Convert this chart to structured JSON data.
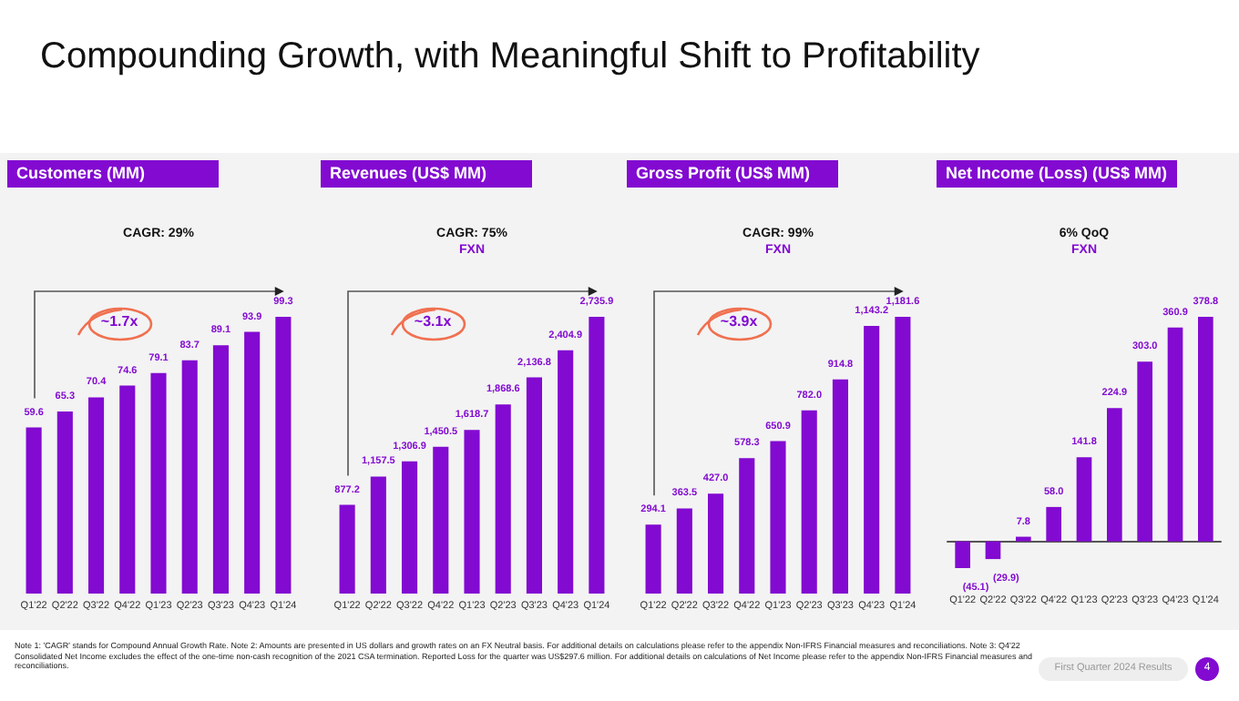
{
  "chart_data": [
    {
      "type": "other",
      "title": "Compounding Growth, with Meaningful Shift to Profitability",
      "annotations": [
        "Note 1: 'CAGR' stands for Compound Annual Growth Rate. Note 2: Amounts are presented in US dollars and growth rates on an FX Neutral basis. For additional details on calculations please refer to the appendix Non-IFRS Financial measures and reconciliations. Note 3: Q4'22 Consolidated Net Income excludes the effect of the one-time non-cash recognition of the 2021 CSA termination. Reported Loss for the quarter was US$297.6 million. For additional details on calculations of Net Income please refer to the appendix Non-IFRS Financial measures and reconciliations.",
        "First Quarter 2024 Results",
        "4"
      ]
    },
    {
      "type": "bar",
      "title": "Customers (MM)",
      "categories": [
        "Q1'22",
        "Q2'22",
        "Q3'22",
        "Q4'22",
        "Q1'23",
        "Q2'23",
        "Q3'23",
        "Q4'23",
        "Q1'24"
      ],
      "values": [
        59.6,
        65.3,
        70.4,
        74.6,
        79.1,
        83.7,
        89.1,
        93.9,
        99.3
      ],
      "color": "#820ad1",
      "data_labels": true,
      "annotations": [
        "CAGR: 29%",
        "~1.7x"
      ]
    },
    {
      "type": "bar",
      "title": "Revenues (US$ MM)",
      "categories": [
        "Q1'22",
        "Q2'22",
        "Q3'22",
        "Q4'22",
        "Q1'23",
        "Q2'23",
        "Q3'23",
        "Q4'23",
        "Q1'24"
      ],
      "values": [
        877.2,
        1157.5,
        1306.9,
        1450.5,
        1618.7,
        1868.6,
        2136.8,
        2404.9,
        2735.9
      ],
      "color": "#820ad1",
      "value_labels": [
        "877.2",
        "1,157.5",
        "1,306.9",
        "1,450.5",
        "1,618.7",
        "1,868.6",
        "2,136.8",
        "2,404.9",
        "2,735.9"
      ],
      "annotations": [
        "CAGR: 75%\nFXN",
        "~3.1x"
      ]
    },
    {
      "type": "bar",
      "title": "Gross Profit (US$ MM)",
      "categories": [
        "Q1'22",
        "Q2'22",
        "Q3'22",
        "Q4'22",
        "Q1'23",
        "Q2'23",
        "Q3'23",
        "Q4'23",
        "Q1'24"
      ],
      "values": [
        294.1,
        363.5,
        427.0,
        578.3,
        650.9,
        782.0,
        914.8,
        1143.2,
        1181.6
      ],
      "color": "#820ad1",
      "value_labels": [
        "294.1",
        "363.5",
        "427.0",
        "578.3",
        "650.9",
        "782.0",
        "914.8",
        "1,143.2",
        "1,181.6"
      ],
      "annotations": [
        "CAGR: 99%\nFXN",
        "~3.9x"
      ]
    },
    {
      "type": "bar",
      "title": "Net Income (Loss) (US$ MM)",
      "categories": [
        "Q1'22",
        "Q2'22",
        "Q3'22",
        "Q4'22",
        "Q1'23",
        "Q2'23",
        "Q3'23",
        "Q4'23",
        "Q1'24"
      ],
      "values": [
        -45.1,
        -29.9,
        7.8,
        58.0,
        141.8,
        224.9,
        303.0,
        360.9,
        378.8
      ],
      "color": "#820ad1",
      "value_labels": [
        "(45.1)",
        "(29.9)",
        "7.8",
        "58.0",
        "141.8",
        "224.9",
        "303.0",
        "360.9",
        "378.8"
      ],
      "annotations": [
        "6% QoQ\nFXN"
      ]
    }
  ]
}
